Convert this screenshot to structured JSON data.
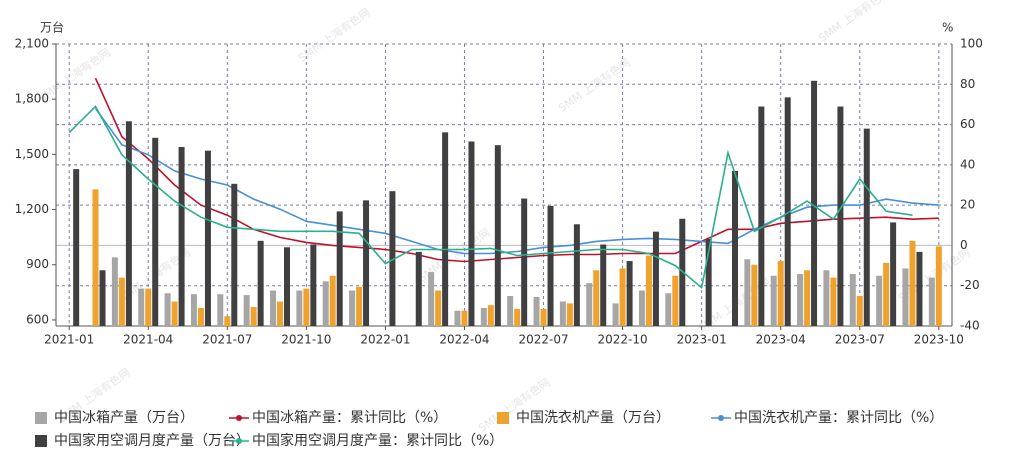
{
  "chart_data": {
    "type": "combo",
    "watermark": "SMM 上海有色网",
    "y_unit": "万台",
    "y2_unit": "%",
    "categories": [
      "2021-01",
      null,
      null,
      "2021-04",
      null,
      null,
      "2021-07",
      null,
      null,
      "2021-10",
      null,
      null,
      "2022-01",
      null,
      null,
      "2022-04",
      null,
      null,
      "2022-07",
      null,
      null,
      "2022-10",
      null,
      null,
      "2023-01",
      null,
      null,
      "2023-04",
      null,
      null,
      "2023-07",
      null,
      null,
      "2023-10"
    ],
    "ylim": [
      567,
      2100
    ],
    "yticks": [
      600,
      900,
      {
        "value": 1200,
        "label": "1,200"
      },
      {
        "value": 1500,
        "label": "1,500"
      },
      {
        "value": 1800,
        "label": "1,800"
      },
      {
        "value": 2100,
        "label": "2,100"
      }
    ],
    "y2lim": [
      -40,
      100
    ],
    "y2ticks": [
      -40,
      -20,
      0,
      20,
      40,
      60,
      80,
      100
    ],
    "grid": true,
    "legend": "bottom",
    "series": [
      {
        "name": "中国冰箱产量（万台）",
        "type": "bar",
        "color": "#a6a6a6",
        "axis": "y",
        "values": [
          null,
          null,
          940,
          770,
          745,
          740,
          740,
          735,
          760,
          760,
          810,
          760,
          null,
          null,
          860,
          650,
          665,
          730,
          725,
          700,
          800,
          690,
          760,
          745,
          null,
          null,
          930,
          840,
          850,
          870,
          850,
          840,
          880,
          830
        ]
      },
      {
        "name": "中国冰箱产量：累计同比（%）",
        "type": "line",
        "color": "#c0102a",
        "axis": "y2",
        "values": [
          null,
          83,
          54,
          43,
          30,
          20,
          15,
          8,
          4,
          1.5,
          0,
          -1,
          -2,
          -4,
          -7,
          -8,
          -7,
          -6,
          -5,
          -4.5,
          -4.5,
          -4,
          -4,
          -4,
          2,
          8,
          8,
          11,
          12,
          13,
          13.5,
          14,
          13,
          13.5
        ]
      },
      {
        "name": "中国洗衣机产量（万台）",
        "type": "bar",
        "color": "#f0a22e",
        "axis": "y",
        "values": [
          null,
          1310,
          830,
          770,
          700,
          665,
          620,
          670,
          700,
          770,
          840,
          780,
          null,
          null,
          760,
          650,
          680,
          660,
          660,
          690,
          870,
          880,
          950,
          840,
          null,
          null,
          900,
          920,
          870,
          830,
          730,
          910,
          1030,
          1000
        ]
      },
      {
        "name": "中国洗衣机产量：累计同比（%）",
        "type": "line",
        "color": "#4a8fd8",
        "axis": "y2",
        "values": [
          null,
          68,
          50,
          45,
          37,
          33,
          30,
          23,
          18,
          12,
          10,
          8,
          6,
          2,
          -2,
          -4,
          -4,
          -3,
          -1,
          0,
          2,
          3,
          3.5,
          3,
          2,
          1,
          8,
          14,
          19,
          20,
          20,
          23,
          21,
          20
        ]
      },
      {
        "name": "中国家用空调月度产量（万台）",
        "type": "bar",
        "color": "#404040",
        "axis": "y",
        "values": [
          1420,
          870,
          1680,
          1590,
          1540,
          1520,
          1340,
          1030,
          995,
          1010,
          1190,
          1250,
          1300,
          970,
          1620,
          1570,
          1550,
          1260,
          1220,
          1120,
          1010,
          920,
          1080,
          1150,
          1040,
          1410,
          1760,
          1810,
          1900,
          1760,
          1640,
          1130,
          970,
          null
        ]
      },
      {
        "name": "中国家用空调月度产量：累计同比（%）",
        "type": "line",
        "color": "#2bb08e",
        "axis": "y2",
        "values": [
          56,
          69,
          45,
          33,
          22,
          14,
          9,
          8,
          7,
          7,
          7,
          6,
          -9,
          -2,
          -2,
          -2,
          -1.5,
          -5,
          -4,
          -3,
          -2,
          -2,
          -4,
          -10,
          -21,
          46,
          7,
          14,
          22,
          13,
          33,
          17,
          15,
          null
        ]
      }
    ]
  }
}
